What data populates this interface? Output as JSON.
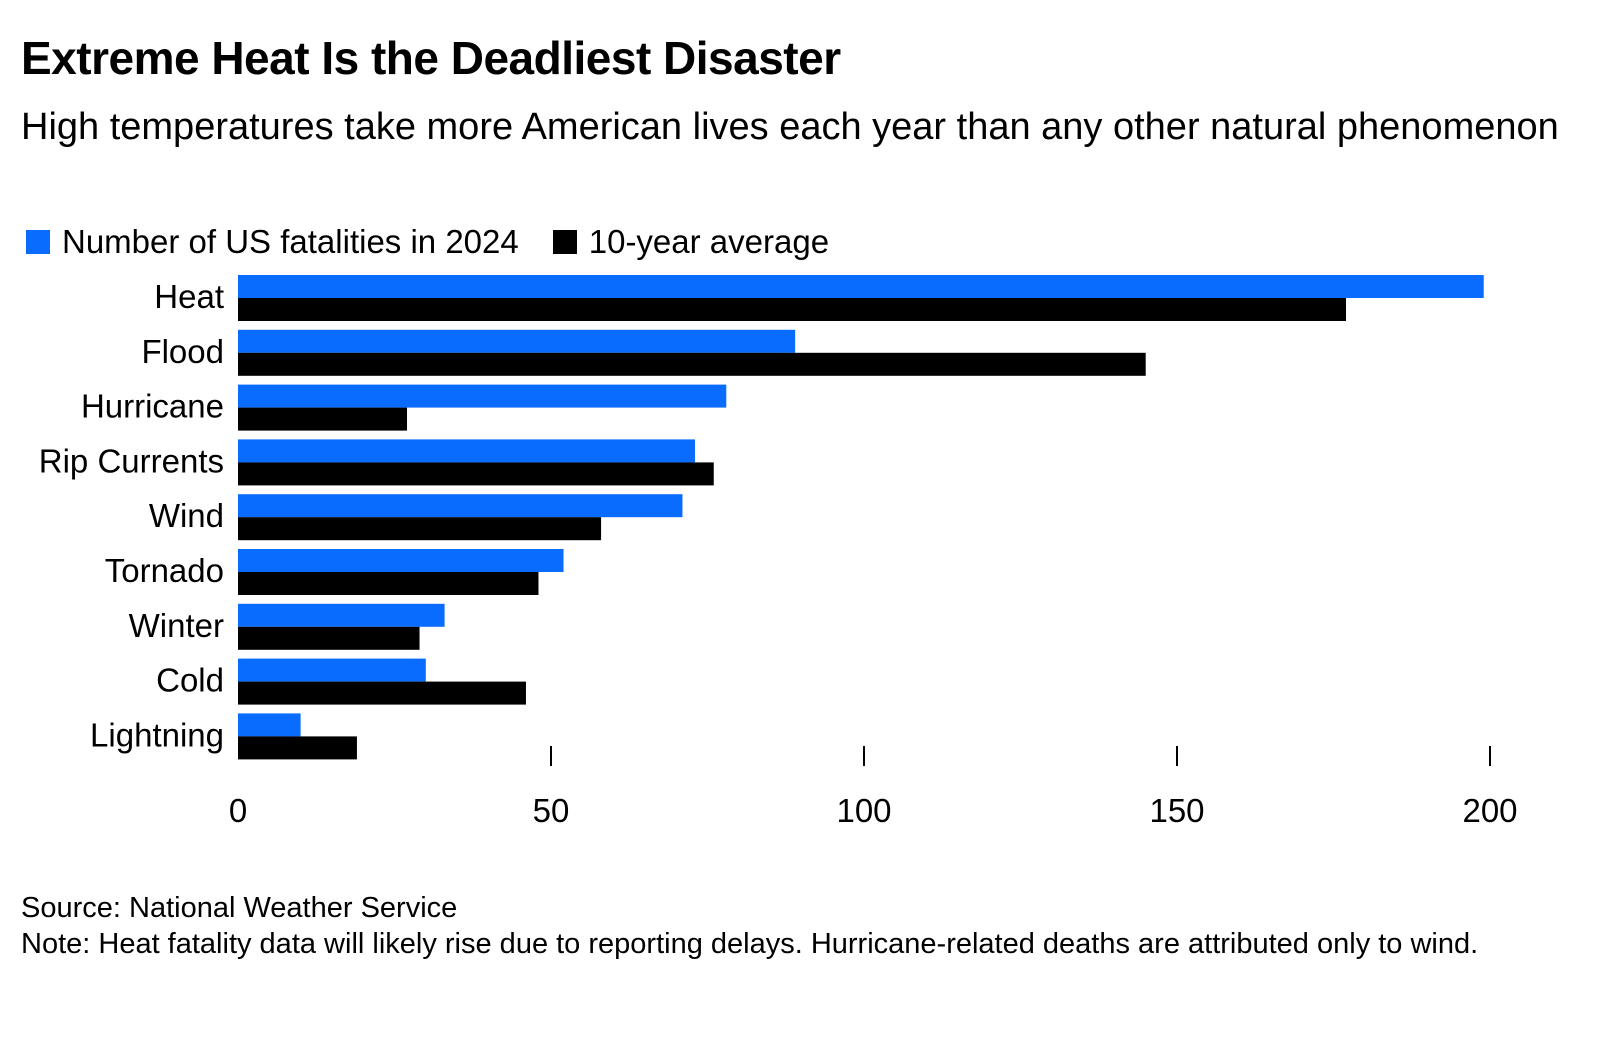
{
  "title": "Extreme Heat Is the Deadliest Disaster",
  "subtitle": "High temperatures take more American lives each year than any other natural phenomenon",
  "source": "Source: National Weather Service",
  "note": "Note: Heat fatality data will likely rise due to reporting delays. Hurricane-related deaths are attributed only to wind.",
  "colors": {
    "series_2024": "#0a6cff",
    "series_avg": "#000000"
  },
  "chart_data": {
    "type": "bar",
    "orientation": "horizontal",
    "categories": [
      "Heat",
      "Flood",
      "Hurricane",
      "Rip Currents",
      "Wind",
      "Tornado",
      "Winter",
      "Cold",
      "Lightning"
    ],
    "series": [
      {
        "name": "Number of US fatalities in 2024",
        "values": [
          199,
          89,
          78,
          73,
          71,
          52,
          33,
          30,
          10
        ]
      },
      {
        "name": "10-year average",
        "values": [
          177,
          145,
          27,
          76,
          58,
          48,
          29,
          46,
          19
        ]
      }
    ],
    "xlim": [
      0,
      200
    ],
    "xticks": [
      "0",
      "50",
      "100",
      "150",
      "200"
    ],
    "xlabel": "",
    "ylabel": "",
    "grid": false,
    "legend_position": "top-left"
  }
}
